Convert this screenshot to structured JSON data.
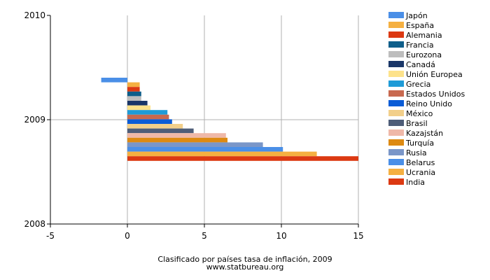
{
  "chart_data": {
    "type": "bar",
    "orientation": "horizontal",
    "title": "Clasificado por países tasa de inflación, 2009",
    "source": "www.statbureau.org",
    "xlabel": "",
    "ylabel": "",
    "xlim": [
      -5,
      15
    ],
    "xticks": [
      -5,
      0,
      5,
      10,
      15
    ],
    "ylim": [
      2008,
      2010
    ],
    "yticks": [
      2010,
      2009,
      2008
    ],
    "category": "2009",
    "grid": true,
    "legend_position": "right",
    "series": [
      {
        "name": "Japón",
        "value": -1.7,
        "color": "#4a8fe7"
      },
      {
        "name": "España",
        "value": 0.8,
        "color": "#f5b041"
      },
      {
        "name": "Alemania",
        "value": 0.8,
        "color": "#dc3912"
      },
      {
        "name": "Francia",
        "value": 0.9,
        "color": "#0e5e8a"
      },
      {
        "name": "Eurozona",
        "value": 0.9,
        "color": "#bdbdbd"
      },
      {
        "name": "Canadá",
        "value": 1.3,
        "color": "#1a3668"
      },
      {
        "name": "Unión Europea",
        "value": 1.5,
        "color": "#fde28a"
      },
      {
        "name": "Grecia",
        "value": 2.6,
        "color": "#1f9bd7"
      },
      {
        "name": "Estados Unidos",
        "value": 2.7,
        "color": "#c8694f"
      },
      {
        "name": "Reino Unido",
        "value": 2.9,
        "color": "#0b5cd6"
      },
      {
        "name": "México",
        "value": 3.6,
        "color": "#f2cf8a"
      },
      {
        "name": "Brasil",
        "value": 4.3,
        "color": "#4e5d78"
      },
      {
        "name": "Kazajstán",
        "value": 6.4,
        "color": "#efb8a8"
      },
      {
        "name": "Turquía",
        "value": 6.5,
        "color": "#dd8a12"
      },
      {
        "name": "Rusia",
        "value": 8.8,
        "color": "#7a96c8"
      },
      {
        "name": "Belarus",
        "value": 10.1,
        "color": "#4a8fe7"
      },
      {
        "name": "Ucrania",
        "value": 12.3,
        "color": "#f5b041"
      },
      {
        "name": "India",
        "value": 15.0,
        "color": "#dc3912"
      }
    ]
  }
}
